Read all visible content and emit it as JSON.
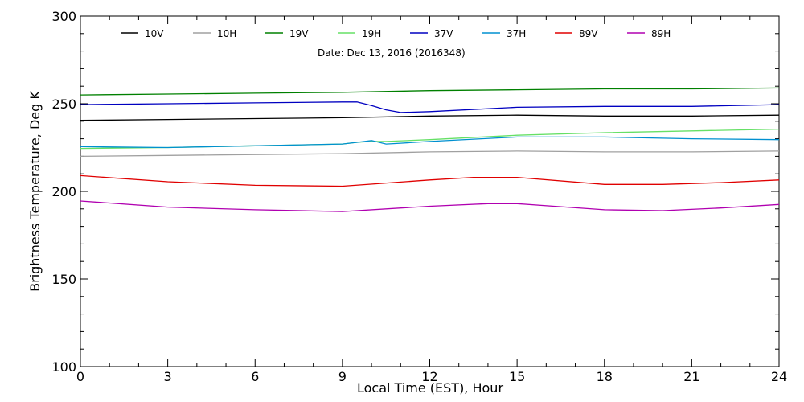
{
  "chart_data": {
    "type": "line",
    "title": "",
    "subtitle": "Date: Dec 13, 2016 (2016348)",
    "xlabel": "Local Time (EST), Hour",
    "ylabel": "Brightness Temperature, Deg K",
    "xlim": [
      0,
      24
    ],
    "ylim": [
      100,
      300
    ],
    "xticks": [
      0,
      3,
      6,
      9,
      12,
      15,
      18,
      21,
      24
    ],
    "yticks": [
      100,
      150,
      200,
      250,
      300
    ],
    "grid": false,
    "legend_position": "top",
    "series": [
      {
        "name": "10V",
        "color": "#000000",
        "x": [
          0,
          3,
          6,
          9,
          12,
          15,
          18,
          21,
          24
        ],
        "y": [
          240.5,
          241,
          241.5,
          242,
          243,
          243.5,
          243,
          243,
          243.5
        ]
      },
      {
        "name": "10H",
        "color": "#a0a0a0",
        "x": [
          0,
          3,
          6,
          9,
          12,
          15,
          18,
          21,
          24
        ],
        "y": [
          220,
          220.5,
          221,
          221.5,
          222.5,
          223,
          222.5,
          222.5,
          223
        ]
      },
      {
        "name": "19V",
        "color": "#008000",
        "x": [
          0,
          3,
          6,
          9,
          12,
          15,
          18,
          21,
          24
        ],
        "y": [
          255,
          255.5,
          256,
          256.5,
          257.5,
          258,
          258.5,
          258.5,
          259
        ]
      },
      {
        "name": "19H",
        "color": "#66e066",
        "x": [
          0,
          3,
          6,
          9,
          9.5,
          10,
          10.5,
          12,
          15,
          18,
          21,
          24
        ],
        "y": [
          224.5,
          225,
          226,
          227,
          228,
          228.5,
          228.5,
          229.5,
          232,
          233.5,
          234.5,
          235.5
        ]
      },
      {
        "name": "37V",
        "color": "#0000c0",
        "x": [
          0,
          3,
          6,
          9,
          9.5,
          10,
          10.5,
          11,
          12,
          15,
          18,
          21,
          24
        ],
        "y": [
          249.5,
          250,
          250.5,
          251,
          251,
          249,
          246.5,
          245,
          245.5,
          248,
          248.5,
          248.5,
          249.5
        ]
      },
      {
        "name": "37H",
        "color": "#0090d0",
        "x": [
          0,
          3,
          6,
          9,
          9.5,
          10,
          10.5,
          11,
          12,
          15,
          18,
          21,
          24
        ],
        "y": [
          225.5,
          225,
          226,
          227,
          228,
          229,
          227,
          227.5,
          228.5,
          231,
          231,
          230,
          229.5
        ]
      },
      {
        "name": "89V",
        "color": "#e00000",
        "x": [
          0,
          3,
          6,
          9,
          12,
          13.5,
          15,
          18,
          20,
          22,
          24
        ],
        "y": [
          209,
          205.5,
          203.5,
          203,
          206.5,
          208,
          208,
          204,
          204,
          205,
          206.5
        ]
      },
      {
        "name": "89H",
        "color": "#b000b0",
        "x": [
          0,
          3,
          6,
          9,
          12,
          14,
          15,
          18,
          20,
          22,
          24
        ],
        "y": [
          194.5,
          191,
          189.5,
          188.5,
          191.5,
          193,
          193,
          189.5,
          189,
          190.5,
          192.5
        ]
      }
    ]
  }
}
